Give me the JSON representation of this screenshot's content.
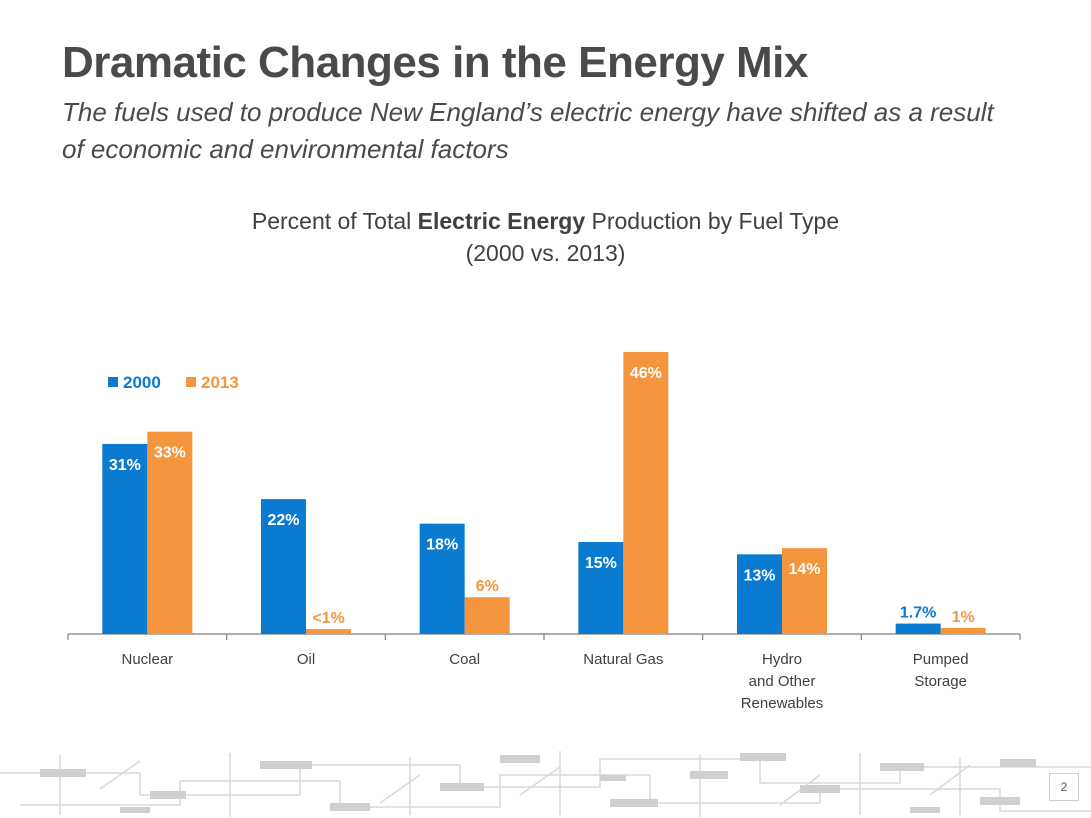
{
  "slide": {
    "title": "Dramatic Changes in the Energy Mix",
    "subtitle": "The fuels used to produce New England’s electric energy have shifted as a result of economic and environmental factors",
    "page_number": "2"
  },
  "chart_title": {
    "prefix": "Percent of Total ",
    "bold": "Electric Energy",
    "suffix": " Production by Fuel Type",
    "line2": "(2000 vs. 2013)"
  },
  "chart_data": {
    "type": "bar",
    "title": "Percent of Total Electric Energy Production by Fuel Type (2000 vs. 2013)",
    "xlabel": "",
    "ylabel": "",
    "ylim": [
      0,
      50
    ],
    "grid": false,
    "legend_position": "top-left",
    "categories": [
      [
        "Nuclear"
      ],
      [
        "Oil"
      ],
      [
        "Coal"
      ],
      [
        "Natural Gas"
      ],
      [
        "Hydro",
        "and Other",
        "Renewables"
      ],
      [
        "Pumped",
        "Storage"
      ]
    ],
    "series": [
      {
        "name": "2000",
        "color": "#0a7bd0",
        "values": [
          31,
          22,
          18,
          15,
          13,
          1.7
        ],
        "labels": [
          "31%",
          "22%",
          "18%",
          "15%",
          "13%",
          "1.7%"
        ]
      },
      {
        "name": "2013",
        "color": "#f5953d",
        "values": [
          33,
          0.8,
          6,
          46,
          14,
          1
        ],
        "labels": [
          "33%",
          "<1%",
          "6%",
          "46%",
          "14%",
          "1%"
        ]
      }
    ]
  }
}
